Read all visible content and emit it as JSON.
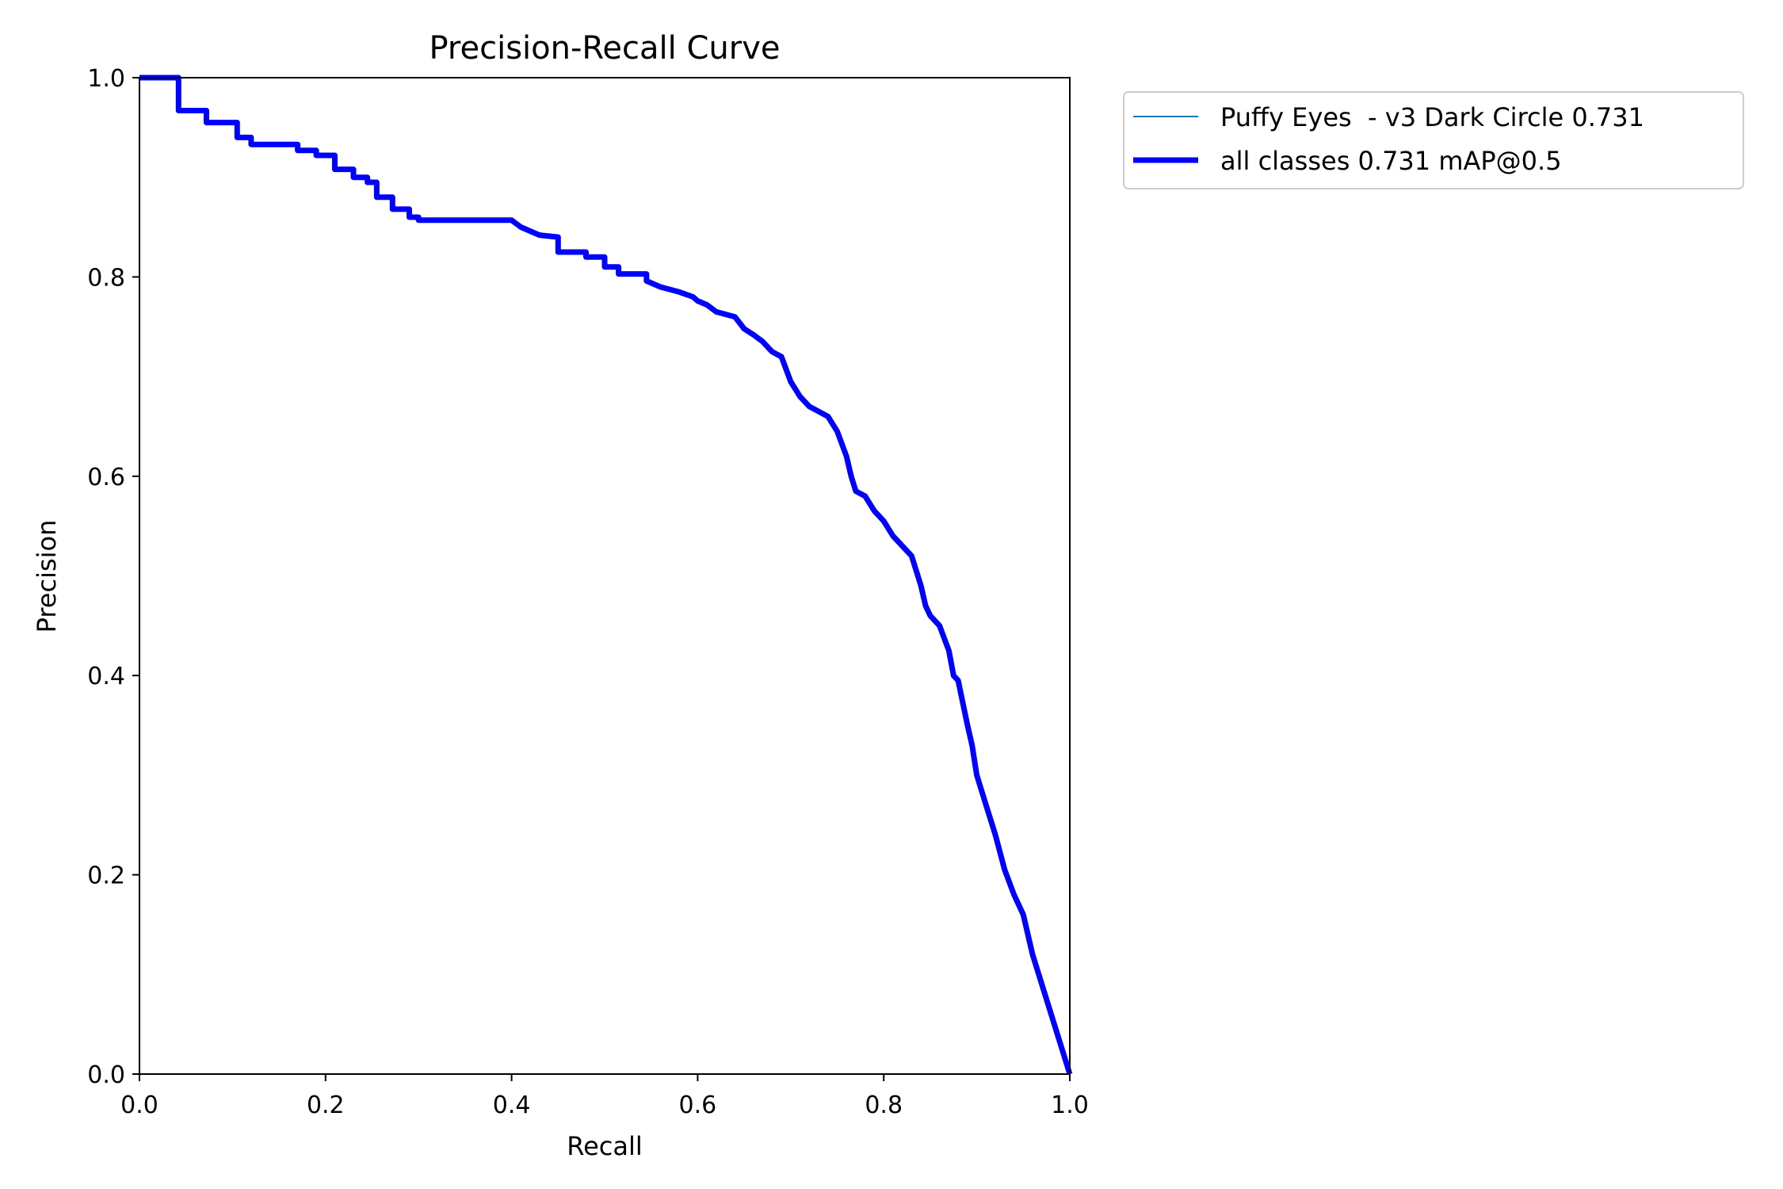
{
  "chart_data": {
    "type": "line",
    "title": "Precision-Recall Curve",
    "xlabel": "Recall",
    "ylabel": "Precision",
    "xlim": [
      0,
      1
    ],
    "ylim": [
      0,
      1
    ],
    "xticks": [
      "0.0",
      "0.2",
      "0.4",
      "0.6",
      "0.8",
      "1.0"
    ],
    "yticks": [
      "0.0",
      "0.2",
      "0.4",
      "0.6",
      "0.8",
      "1.0"
    ],
    "grid": false,
    "legend_position": "outside-top-right",
    "series": [
      {
        "name": "Puffy Eyes  - v3 Dark Circle 0.731",
        "color": "#1f77b4",
        "x": [
          0.0,
          0.042,
          0.042,
          0.072,
          0.072,
          0.105,
          0.105,
          0.12,
          0.12,
          0.17,
          0.17,
          0.19,
          0.19,
          0.21,
          0.21,
          0.23,
          0.23,
          0.245,
          0.245,
          0.255,
          0.255,
          0.272,
          0.272,
          0.29,
          0.29,
          0.3,
          0.3,
          0.4,
          0.41,
          0.43,
          0.45,
          0.45,
          0.455,
          0.455,
          0.48,
          0.48,
          0.5,
          0.5,
          0.515,
          0.515,
          0.545,
          0.545,
          0.56,
          0.58,
          0.58,
          0.595,
          0.6,
          0.61,
          0.62,
          0.64,
          0.65,
          0.66,
          0.67,
          0.68,
          0.69,
          0.7,
          0.71,
          0.72,
          0.73,
          0.74,
          0.75,
          0.76,
          0.765,
          0.77,
          0.78,
          0.79,
          0.8,
          0.81,
          0.82,
          0.83,
          0.84,
          0.845,
          0.85,
          0.86,
          0.87,
          0.875,
          0.88,
          0.89,
          0.895,
          0.9,
          0.91,
          0.92,
          0.93,
          0.94,
          0.95,
          0.96,
          1.0
        ],
        "y": [
          1.0,
          1.0,
          0.967,
          0.967,
          0.955,
          0.955,
          0.94,
          0.94,
          0.933,
          0.933,
          0.927,
          0.927,
          0.922,
          0.922,
          0.908,
          0.908,
          0.9,
          0.9,
          0.895,
          0.895,
          0.88,
          0.88,
          0.868,
          0.868,
          0.86,
          0.86,
          0.857,
          0.857,
          0.85,
          0.842,
          0.84,
          0.825,
          0.825,
          0.825,
          0.825,
          0.82,
          0.82,
          0.81,
          0.81,
          0.803,
          0.803,
          0.796,
          0.79,
          0.785,
          0.785,
          0.78,
          0.776,
          0.772,
          0.765,
          0.76,
          0.748,
          0.742,
          0.735,
          0.725,
          0.72,
          0.695,
          0.68,
          0.67,
          0.665,
          0.66,
          0.645,
          0.62,
          0.6,
          0.585,
          0.58,
          0.565,
          0.555,
          0.54,
          0.53,
          0.52,
          0.49,
          0.47,
          0.46,
          0.45,
          0.425,
          0.4,
          0.395,
          0.35,
          0.33,
          0.3,
          0.27,
          0.24,
          0.205,
          0.18,
          0.16,
          0.12,
          0.0
        ]
      },
      {
        "name": "all classes 0.731 mAP@0.5",
        "color": "#0000ff",
        "x": [
          0.0,
          0.042,
          0.042,
          0.072,
          0.072,
          0.105,
          0.105,
          0.12,
          0.12,
          0.17,
          0.17,
          0.19,
          0.19,
          0.21,
          0.21,
          0.23,
          0.23,
          0.245,
          0.245,
          0.255,
          0.255,
          0.272,
          0.272,
          0.29,
          0.29,
          0.3,
          0.3,
          0.4,
          0.41,
          0.43,
          0.45,
          0.45,
          0.455,
          0.455,
          0.48,
          0.48,
          0.5,
          0.5,
          0.515,
          0.515,
          0.545,
          0.545,
          0.56,
          0.58,
          0.58,
          0.595,
          0.6,
          0.61,
          0.62,
          0.64,
          0.65,
          0.66,
          0.67,
          0.68,
          0.69,
          0.7,
          0.71,
          0.72,
          0.73,
          0.74,
          0.75,
          0.76,
          0.765,
          0.77,
          0.78,
          0.79,
          0.8,
          0.81,
          0.82,
          0.83,
          0.84,
          0.845,
          0.85,
          0.86,
          0.87,
          0.875,
          0.88,
          0.89,
          0.895,
          0.9,
          0.91,
          0.92,
          0.93,
          0.94,
          0.95,
          0.96,
          1.0
        ],
        "y": [
          1.0,
          1.0,
          0.967,
          0.967,
          0.955,
          0.955,
          0.94,
          0.94,
          0.933,
          0.933,
          0.927,
          0.927,
          0.922,
          0.922,
          0.908,
          0.908,
          0.9,
          0.9,
          0.895,
          0.895,
          0.88,
          0.88,
          0.868,
          0.868,
          0.86,
          0.86,
          0.857,
          0.857,
          0.85,
          0.842,
          0.84,
          0.825,
          0.825,
          0.825,
          0.825,
          0.82,
          0.82,
          0.81,
          0.81,
          0.803,
          0.803,
          0.796,
          0.79,
          0.785,
          0.785,
          0.78,
          0.776,
          0.772,
          0.765,
          0.76,
          0.748,
          0.742,
          0.735,
          0.725,
          0.72,
          0.695,
          0.68,
          0.67,
          0.665,
          0.66,
          0.645,
          0.62,
          0.6,
          0.585,
          0.58,
          0.565,
          0.555,
          0.54,
          0.53,
          0.52,
          0.49,
          0.47,
          0.46,
          0.45,
          0.425,
          0.4,
          0.395,
          0.35,
          0.33,
          0.3,
          0.27,
          0.24,
          0.205,
          0.18,
          0.16,
          0.12,
          0.0
        ]
      }
    ]
  }
}
